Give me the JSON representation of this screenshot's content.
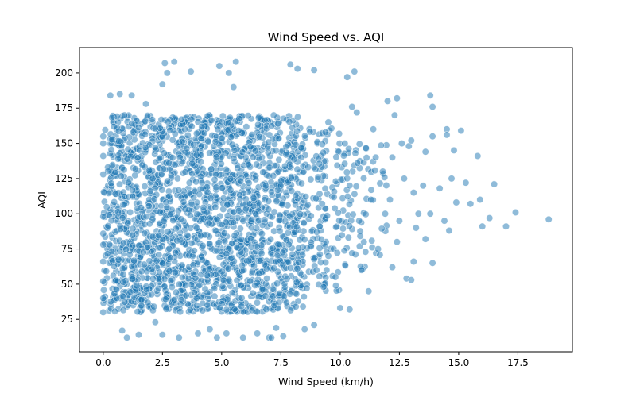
{
  "chart_data": {
    "type": "scatter",
    "title": "Wind Speed vs. AQI",
    "xlabel": "Wind Speed (km/h)",
    "ylabel": "AQI",
    "xlim": [
      -1.0,
      19.8
    ],
    "ylim": [
      2,
      218
    ],
    "xticks": [
      0.0,
      2.5,
      5.0,
      7.5,
      10.0,
      12.5,
      15.0,
      17.5
    ],
    "xtick_labels": [
      "0.0",
      "2.5",
      "5.0",
      "7.5",
      "10.0",
      "12.5",
      "15.0",
      "17.5"
    ],
    "yticks": [
      25,
      50,
      75,
      100,
      125,
      150,
      175,
      200
    ],
    "ytick_labels": [
      "25",
      "50",
      "75",
      "100",
      "125",
      "150",
      "175",
      "200"
    ],
    "grid": false,
    "legend": "none",
    "marker_color": "#1f77b4",
    "marker_edge_color": "#ffffff",
    "marker_alpha": 0.5,
    "series": [
      {
        "points": [
          [
            0.0,
            30
          ],
          [
            0.0,
            40
          ],
          [
            0.0,
            52
          ],
          [
            0.0,
            66
          ],
          [
            0.0,
            78
          ],
          [
            0.0,
            86
          ],
          [
            0.0,
            98
          ],
          [
            0.0,
            128
          ],
          [
            0.0,
            141
          ],
          [
            0.0,
            150
          ],
          [
            0.0,
            155
          ],
          [
            0.3,
            184
          ],
          [
            0.7,
            185
          ],
          [
            0.9,
            170
          ],
          [
            0.8,
            17
          ],
          [
            1.0,
            12
          ],
          [
            1.5,
            14
          ],
          [
            1.2,
            184
          ],
          [
            1.8,
            178
          ],
          [
            2.2,
            23
          ],
          [
            2.5,
            14
          ],
          [
            2.5,
            192
          ],
          [
            2.6,
            207
          ],
          [
            3.0,
            208
          ],
          [
            2.7,
            200
          ],
          [
            3.2,
            12
          ],
          [
            3.7,
            201
          ],
          [
            4.0,
            15
          ],
          [
            4.5,
            18
          ],
          [
            4.8,
            12
          ],
          [
            5.2,
            15
          ],
          [
            4.9,
            205
          ],
          [
            5.3,
            200
          ],
          [
            5.5,
            190
          ],
          [
            5.6,
            208
          ],
          [
            5.9,
            12
          ],
          [
            6.5,
            15
          ],
          [
            7.0,
            12
          ],
          [
            7.3,
            19
          ],
          [
            7.1,
            12
          ],
          [
            7.6,
            13
          ],
          [
            7.9,
            206
          ],
          [
            8.2,
            203
          ],
          [
            8.5,
            18
          ],
          [
            8.9,
            21
          ],
          [
            8.9,
            202
          ],
          [
            9.0,
            60
          ],
          [
            9.3,
            48
          ],
          [
            9.5,
            70
          ],
          [
            9.5,
            165
          ],
          [
            9.8,
            55
          ],
          [
            10.0,
            33
          ],
          [
            10.3,
            197
          ],
          [
            10.6,
            201
          ],
          [
            10.4,
            32
          ],
          [
            10.5,
            176
          ],
          [
            10.7,
            172
          ],
          [
            10.2,
            150
          ],
          [
            10.4,
            120
          ],
          [
            10.8,
            95
          ],
          [
            10.5,
            72
          ],
          [
            10.9,
            60
          ],
          [
            11.2,
            45
          ],
          [
            11.0,
            80
          ],
          [
            11.3,
            110
          ],
          [
            11.5,
            140
          ],
          [
            11.4,
            160
          ],
          [
            11.8,
            130
          ],
          [
            11.9,
            100
          ],
          [
            11.6,
            75
          ],
          [
            12.0,
            180
          ],
          [
            12.4,
            182
          ],
          [
            12.3,
            170
          ],
          [
            12.2,
            140
          ],
          [
            12.6,
            150
          ],
          [
            12.1,
            110
          ],
          [
            12.5,
            95
          ],
          [
            12.7,
            125
          ],
          [
            12.4,
            80
          ],
          [
            12.2,
            62
          ],
          [
            12.8,
            54
          ],
          [
            13.0,
            53
          ],
          [
            13.1,
            66
          ],
          [
            12.9,
            148
          ],
          [
            13.0,
            152
          ],
          [
            13.2,
            90
          ],
          [
            13.1,
            115
          ],
          [
            13.3,
            100
          ],
          [
            13.6,
            144
          ],
          [
            13.8,
            184
          ],
          [
            13.9,
            176
          ],
          [
            13.5,
            120
          ],
          [
            13.8,
            100
          ],
          [
            13.6,
            82
          ],
          [
            13.9,
            65
          ],
          [
            13.9,
            155
          ],
          [
            14.2,
            118
          ],
          [
            14.5,
            160
          ],
          [
            14.5,
            156
          ],
          [
            14.8,
            145
          ],
          [
            14.7,
            125
          ],
          [
            14.4,
            95
          ],
          [
            14.6,
            88
          ],
          [
            14.9,
            108
          ],
          [
            15.1,
            159
          ],
          [
            15.3,
            122
          ],
          [
            15.5,
            107
          ],
          [
            15.8,
            141
          ],
          [
            15.9,
            110
          ],
          [
            16.0,
            91
          ],
          [
            16.3,
            97
          ],
          [
            16.5,
            121
          ],
          [
            17.0,
            91
          ],
          [
            17.4,
            101
          ],
          [
            18.8,
            96
          ]
        ]
      }
    ]
  }
}
